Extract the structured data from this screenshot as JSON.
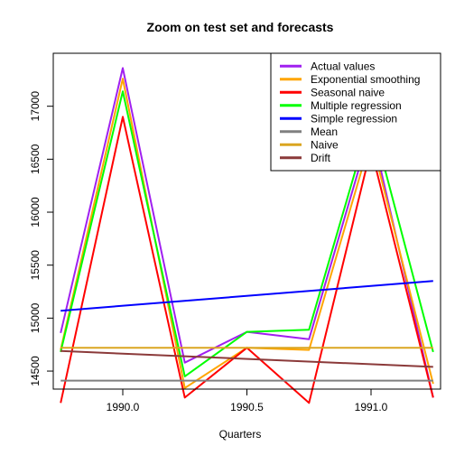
{
  "chart_data": {
    "type": "line",
    "title": "Zoom on test set and forecasts",
    "xlabel": "Quarters",
    "ylabel": "",
    "xlim": [
      1989.72,
      1991.28
    ],
    "ylim": [
      14330,
      17500
    ],
    "x_ticks": [
      {
        "value": 1990.0,
        "label": "1990.0"
      },
      {
        "value": 1990.5,
        "label": "1990.5"
      },
      {
        "value": 1991.0,
        "label": "1991.0"
      }
    ],
    "y_ticks": [
      {
        "value": 14500,
        "label": "14500"
      },
      {
        "value": 15000,
        "label": "15000"
      },
      {
        "value": 15500,
        "label": "15500"
      },
      {
        "value": 16000,
        "label": "16000"
      },
      {
        "value": 16500,
        "label": "16500"
      },
      {
        "value": 17000,
        "label": "17000"
      }
    ],
    "x": [
      1989.75,
      1990.0,
      1990.25,
      1990.5,
      1990.75,
      1991.0,
      1991.25
    ],
    "grid": false,
    "legend_position": "top-right",
    "series": [
      {
        "name": "Actual values",
        "color": "#A020F0",
        "values": [
          14860,
          17360,
          14580,
          14870,
          14800,
          16800,
          14250
        ]
      },
      {
        "name": "Exponential smoothing",
        "color": "#FFA500",
        "values": [
          14700,
          17260,
          14340,
          14720,
          14700,
          16700,
          14380
        ]
      },
      {
        "name": "Seasonal naive",
        "color": "#FF0000",
        "values": [
          14200,
          16900,
          14250,
          14720,
          14200,
          16600,
          14250
        ]
      },
      {
        "name": "Multiple regression",
        "color": "#00FF00",
        "values": [
          14680,
          17140,
          14450,
          14870,
          14890,
          16900,
          14680
        ]
      },
      {
        "name": "Simple regression",
        "color": "#0000FF",
        "values": [
          15070,
          null,
          null,
          null,
          null,
          null,
          15350
        ]
      },
      {
        "name": "Mean",
        "color": "#808080",
        "values": [
          14410,
          null,
          null,
          null,
          null,
          null,
          14410
        ]
      },
      {
        "name": "Naive",
        "color": "#DAA520",
        "values": [
          14720,
          null,
          null,
          null,
          null,
          null,
          14720
        ]
      },
      {
        "name": "Drift",
        "color": "#8B3A3A",
        "values": [
          14690,
          null,
          null,
          null,
          null,
          null,
          14540
        ]
      }
    ]
  }
}
